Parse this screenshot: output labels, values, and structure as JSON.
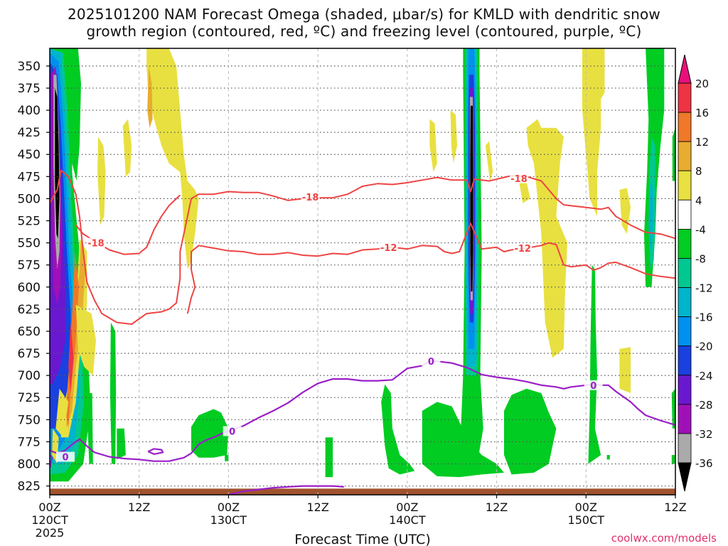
{
  "chart_data": {
    "type": "heatmap",
    "title_line1": "2025101200 NAM Forecast Omega (shaded, μbar/s) for KMLD with dendritic snow",
    "title_line2": "growth region (contoured, red, ºC) and freezing level (contoured, purple, ºC)",
    "xlabel": "Forecast Time (UTC)",
    "credit": "coolwx.com/models",
    "x_hours_range": [
      0,
      84
    ],
    "y_hpa_range": [
      330,
      835
    ],
    "y_ticks": [
      350,
      375,
      400,
      425,
      450,
      475,
      500,
      525,
      550,
      575,
      600,
      625,
      650,
      675,
      700,
      725,
      750,
      775,
      800,
      825
    ],
    "x_ticks": [
      {
        "hour": 0,
        "time": "00Z",
        "date": "120CT",
        "year": "2025"
      },
      {
        "hour": 12,
        "time": "12Z",
        "date": "",
        "year": ""
      },
      {
        "hour": 24,
        "time": "00Z",
        "date": "130CT",
        "year": ""
      },
      {
        "hour": 36,
        "time": "12Z",
        "date": "",
        "year": ""
      },
      {
        "hour": 48,
        "time": "00Z",
        "date": "140CT",
        "year": ""
      },
      {
        "hour": 60,
        "time": "12Z",
        "date": "",
        "year": ""
      },
      {
        "hour": 72,
        "time": "00Z",
        "date": "150CT",
        "year": ""
      },
      {
        "hour": 84,
        "time": "12Z",
        "date": "",
        "year": ""
      }
    ],
    "colorbar": {
      "labels": [
        "20",
        "16",
        "12",
        "8",
        "4",
        "-4",
        "-8",
        "-12",
        "-16",
        "-20",
        "-24",
        "-28",
        "-32",
        "-36"
      ],
      "bands": [
        {
          "lo": 16,
          "hi": 20,
          "color": "#ee3344"
        },
        {
          "lo": 12,
          "hi": 16,
          "color": "#f07828"
        },
        {
          "lo": 8,
          "hi": 12,
          "color": "#e8ac30"
        },
        {
          "lo": 4,
          "hi": 8,
          "color": "#e8e040"
        },
        {
          "lo": -4,
          "hi": 4,
          "color": "#ffffff"
        },
        {
          "lo": -8,
          "hi": -4,
          "color": "#00cc22"
        },
        {
          "lo": -12,
          "hi": -8,
          "color": "#00c890"
        },
        {
          "lo": -16,
          "hi": -12,
          "color": "#00b4cc"
        },
        {
          "lo": -20,
          "hi": -16,
          "color": "#0090f0"
        },
        {
          "lo": -24,
          "hi": -20,
          "color": "#1a40e0"
        },
        {
          "lo": -28,
          "hi": -24,
          "color": "#6a18d0"
        },
        {
          "lo": -32,
          "hi": -28,
          "color": "#a010b8"
        },
        {
          "lo": -36,
          "hi": -32,
          "color": "#aaaaaa"
        }
      ],
      "top_arrow_color": "#e8107a",
      "bottom_arrow_color": "#000000"
    },
    "terrain": {
      "color": "#a0522d",
      "pressure_hpa": 828
    },
    "contours": {
      "minus18": {
        "label": "-18",
        "color": "#ee4444",
        "points": [
          [
            0,
            505
          ],
          [
            1,
            490
          ],
          [
            1.5,
            468
          ],
          [
            2.5,
            475
          ],
          [
            3.5,
            495
          ],
          [
            4,
            520
          ],
          [
            4.5,
            560
          ],
          [
            5,
            595
          ],
          [
            6,
            615
          ],
          [
            7,
            630
          ],
          [
            9,
            640
          ],
          [
            11,
            642
          ],
          [
            13,
            630
          ],
          [
            15,
            628
          ],
          [
            16,
            625
          ],
          [
            17,
            618
          ],
          [
            17.5,
            590
          ],
          [
            17.5,
            560
          ],
          [
            18,
            540
          ],
          [
            18.5,
            520
          ],
          [
            19,
            500
          ],
          [
            20,
            495
          ],
          [
            22,
            495
          ],
          [
            24,
            492
          ],
          [
            26,
            493
          ],
          [
            28,
            493
          ],
          [
            30,
            497
          ],
          [
            32,
            502
          ],
          [
            34,
            500
          ],
          [
            36,
            499
          ],
          [
            38,
            499
          ],
          [
            40,
            495
          ],
          [
            42,
            486
          ],
          [
            44,
            483
          ],
          [
            46,
            484
          ],
          [
            48,
            482
          ],
          [
            50,
            479
          ],
          [
            52,
            476
          ],
          [
            54,
            479
          ],
          [
            56,
            479
          ],
          [
            56.5,
            492
          ],
          [
            57,
            478
          ],
          [
            59,
            480
          ],
          [
            62,
            474
          ],
          [
            64,
            475
          ],
          [
            66,
            480
          ],
          [
            67,
            490
          ],
          [
            68,
            500
          ],
          [
            69,
            507
          ],
          [
            70,
            508
          ],
          [
            72,
            510
          ],
          [
            74,
            512
          ],
          [
            75,
            510
          ],
          [
            76,
            520
          ],
          [
            78,
            530
          ],
          [
            80,
            538
          ],
          [
            82,
            540
          ],
          [
            84,
            545
          ]
        ]
      },
      "minus12": {
        "label": "-12",
        "color": "#ee4444",
        "points": [
          [
            3.5,
            530
          ],
          [
            4.5,
            540
          ],
          [
            6,
            548
          ],
          [
            8,
            558
          ],
          [
            10,
            563
          ],
          [
            12,
            562
          ],
          [
            13,
            555
          ],
          [
            14,
            535
          ],
          [
            15,
            520
          ],
          [
            16,
            508
          ],
          [
            17,
            500
          ],
          [
            17.5,
            496
          ]
        ],
        "points2": [
          [
            18.5,
            630
          ],
          [
            19,
            612
          ],
          [
            19.5,
            600
          ],
          [
            19,
            580
          ],
          [
            19,
            560
          ],
          [
            20,
            553
          ],
          [
            22,
            556
          ],
          [
            24,
            559
          ],
          [
            26,
            560
          ],
          [
            28,
            563
          ],
          [
            30,
            563
          ],
          [
            32,
            561
          ],
          [
            34,
            564
          ],
          [
            36,
            565
          ],
          [
            38,
            562
          ],
          [
            40,
            563
          ],
          [
            42,
            558
          ],
          [
            44,
            557
          ],
          [
            46,
            555
          ],
          [
            48,
            557
          ],
          [
            50,
            553
          ],
          [
            52,
            554
          ],
          [
            53,
            560
          ],
          [
            54,
            562
          ],
          [
            55,
            560
          ],
          [
            56.5,
            528
          ],
          [
            58,
            557
          ],
          [
            60,
            555
          ],
          [
            61,
            560
          ],
          [
            62,
            558
          ],
          [
            64,
            556
          ],
          [
            66,
            553
          ],
          [
            67,
            550
          ],
          [
            68,
            552
          ],
          [
            69,
            575
          ],
          [
            70,
            577
          ],
          [
            72,
            575
          ],
          [
            73,
            581
          ],
          [
            74,
            578
          ],
          [
            75,
            573
          ],
          [
            76,
            572
          ],
          [
            78,
            578
          ],
          [
            80,
            585
          ],
          [
            82,
            588
          ],
          [
            84,
            590
          ]
        ]
      },
      "freezing": {
        "label": "0",
        "color": "#9a1ec8",
        "points": [
          [
            0,
            785
          ],
          [
            1,
            788
          ],
          [
            2,
            785
          ],
          [
            3,
            778
          ],
          [
            4,
            772
          ],
          [
            5,
            780
          ],
          [
            6,
            787
          ],
          [
            8,
            792
          ],
          [
            10,
            794
          ],
          [
            12,
            795
          ],
          [
            14,
            797
          ],
          [
            16,
            797
          ],
          [
            18,
            793
          ],
          [
            19,
            788
          ],
          [
            20,
            778
          ],
          [
            21,
            773
          ],
          [
            22,
            770
          ],
          [
            23,
            766
          ],
          [
            24,
            763
          ],
          [
            26,
            757
          ],
          [
            28,
            748
          ],
          [
            30,
            740
          ],
          [
            32,
            731
          ],
          [
            34,
            719
          ],
          [
            36,
            709
          ],
          [
            38,
            704
          ],
          [
            40,
            704
          ],
          [
            42,
            706
          ],
          [
            44,
            706
          ],
          [
            46,
            705
          ],
          [
            48,
            692
          ],
          [
            50,
            689
          ],
          [
            51,
            684
          ],
          [
            52,
            684
          ],
          [
            54,
            686
          ],
          [
            56,
            691
          ],
          [
            58,
            699
          ],
          [
            60,
            702
          ],
          [
            62,
            704
          ],
          [
            64,
            707
          ],
          [
            66,
            711
          ],
          [
            68,
            713
          ],
          [
            69,
            715
          ],
          [
            70,
            713
          ],
          [
            72,
            711
          ],
          [
            73,
            710
          ],
          [
            74,
            711
          ],
          [
            75,
            711
          ],
          [
            76,
            718
          ],
          [
            78,
            730
          ],
          [
            79,
            738
          ],
          [
            80,
            745
          ],
          [
            82,
            751
          ],
          [
            84,
            756
          ]
        ],
        "points2": [
          [
            0,
            805
          ],
          [
            0.3,
            793
          ],
          [
            0,
            790
          ]
        ],
        "points3": [
          [
            13.2,
            786
          ],
          [
            14,
            783
          ],
          [
            15,
            784
          ],
          [
            15.2,
            787
          ],
          [
            14,
            789
          ],
          [
            13.2,
            786
          ]
        ],
        "points4": [
          [
            24,
            835
          ],
          [
            26,
            831
          ],
          [
            28,
            829
          ],
          [
            30,
            827
          ],
          [
            32,
            826
          ],
          [
            34,
            825
          ],
          [
            36,
            825
          ],
          [
            38,
            825
          ],
          [
            39.5,
            826
          ]
        ]
      }
    }
  }
}
